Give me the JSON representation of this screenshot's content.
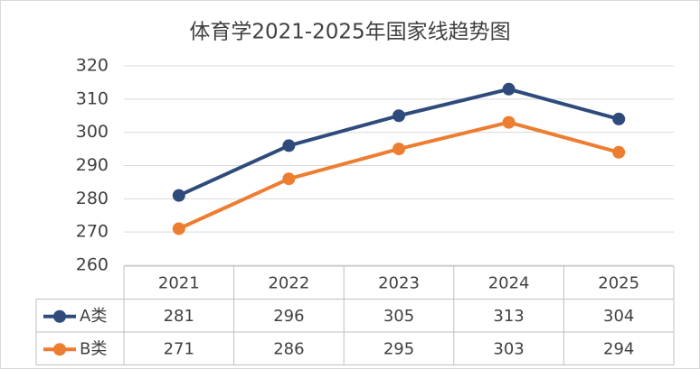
{
  "chart_data": {
    "type": "line",
    "title": "体育学2021-2025年国家线趋势图",
    "categories": [
      "2021",
      "2022",
      "2023",
      "2024",
      "2025"
    ],
    "series": [
      {
        "name": "A类",
        "color": "#2f4b7c",
        "values": [
          281,
          296,
          305,
          313,
          304
        ]
      },
      {
        "name": "B类",
        "color": "#ed7d31",
        "values": [
          271,
          286,
          295,
          303,
          294
        ]
      }
    ],
    "ylim": [
      260,
      320
    ],
    "yticks": [
      260,
      270,
      280,
      290,
      300,
      310,
      320
    ],
    "grid": true,
    "data_table": true
  }
}
